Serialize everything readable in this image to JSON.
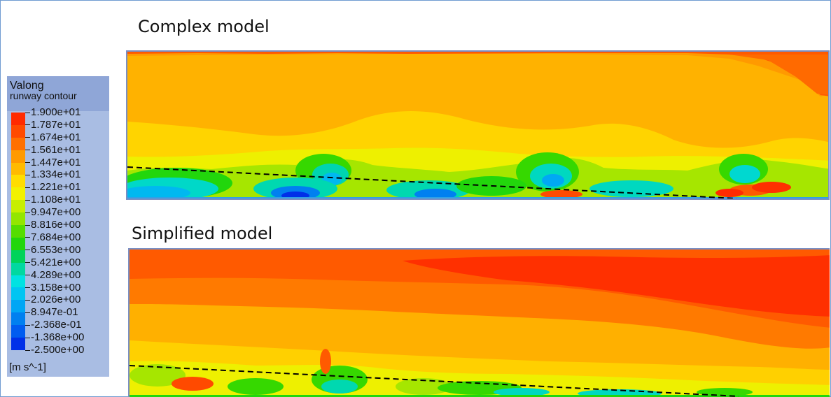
{
  "panels": {
    "complex_title": "Complex model",
    "simplified_title": "Simplified model"
  },
  "legend": {
    "title": "Valong",
    "subtitle": "runway contour",
    "units": "[m s^-1]",
    "ticks": [
      "1.900e+01",
      "1.787e+01",
      "1.674e+01",
      "1.561e+01",
      "1.447e+01",
      "1.334e+01",
      "1.221e+01",
      "1.108e+01",
      "9.947e+00",
      "8.816e+00",
      "7.684e+00",
      "6.553e+00",
      "5.421e+00",
      "4.289e+00",
      "3.158e+00",
      "2.026e+00",
      "8.947e-01",
      "-2.368e-01",
      "-1.368e+00",
      "-2.500e+00"
    ],
    "colors": [
      "#ff2a00",
      "#ff4a00",
      "#ff7000",
      "#ff9a00",
      "#ffba00",
      "#ffdd00",
      "#f2f200",
      "#c7ef00",
      "#93e600",
      "#55dd00",
      "#22d60c",
      "#00d35a",
      "#00d8a0",
      "#00e2e2",
      "#00c5f2",
      "#00a6f5",
      "#0080f0",
      "#005cf0",
      "#0030e8",
      "#0000d8"
    ]
  }
}
